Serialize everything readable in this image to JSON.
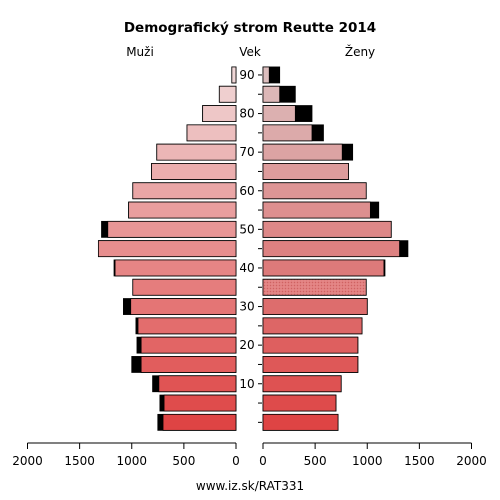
{
  "chart_data": {
    "type": "bar",
    "orientation": "horizontal",
    "title": "Demografický strom Reutte 2014",
    "left_label": "Muži",
    "center_label": "Vek",
    "right_label": "Ženy",
    "footer": "www.iz.sk/RAT331",
    "age_ticks": [
      "90",
      "80",
      "70",
      "60",
      "50",
      "40",
      "30",
      "20",
      "10"
    ],
    "x_ticks": [
      "2000",
      "1500",
      "1000",
      "500",
      "0"
    ],
    "x_ticks_right": [
      "0",
      "500",
      "1000",
      "1500",
      "2000"
    ],
    "xlim": [
      0,
      2000
    ],
    "age_groups": [
      "0-4",
      "5-9",
      "10-14",
      "15-19",
      "20-24",
      "25-29",
      "30-34",
      "35-39",
      "40-44",
      "45-49",
      "50-54",
      "55-59",
      "60-64",
      "65-69",
      "70-74",
      "75-79",
      "80-84",
      "85-89",
      "90+"
    ],
    "series": [
      {
        "name": "Muži",
        "values": [
          750,
          730,
          800,
          1000,
          950,
          960,
          1080,
          990,
          1170,
          1320,
          1290,
          1030,
          990,
          810,
          760,
          470,
          320,
          160,
          40
        ]
      },
      {
        "name": "Muži",
        "values": [
          700,
          690,
          740,
          910,
          910,
          940,
          1010,
          990,
          1160,
          1320,
          1230,
          1030,
          990,
          810,
          760,
          470,
          320,
          160,
          40
        ]
      },
      {
        "name": "Ženy",
        "values": [
          720,
          700,
          750,
          910,
          910,
          950,
          1000,
          990,
          1170,
          1390,
          1230,
          1110,
          990,
          820,
          860,
          580,
          470,
          310,
          160
        ]
      },
      {
        "name": "Ženy",
        "values": [
          720,
          700,
          750,
          910,
          910,
          950,
          1000,
          990,
          1160,
          1310,
          1230,
          1030,
          990,
          820,
          760,
          470,
          310,
          160,
          60
        ]
      }
    ]
  },
  "colors": {
    "extra": "#000000",
    "gradient_start": [
      222,
      68,
      68
    ],
    "gradient_end": [
      210,
      210,
      210
    ],
    "muzi_light_top": [
      240,
      215,
      215
    ],
    "zeny_light_top": [
      220,
      190,
      190
    ],
    "zeny_pattern_fill": "#e07a7a"
  }
}
